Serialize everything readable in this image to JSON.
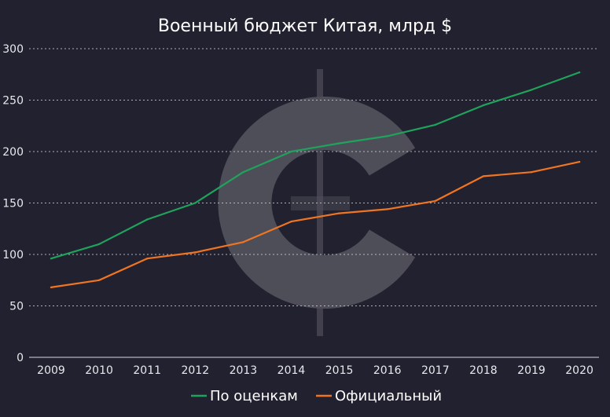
{
  "chart_data": {
    "type": "line",
    "title": "Военный бюджет Китая, млрд $",
    "xlabel": "",
    "ylabel": "",
    "x": [
      "2009",
      "2010",
      "2011",
      "2012",
      "2013",
      "2014",
      "2015",
      "2016",
      "2017",
      "2018",
      "2019",
      "2020"
    ],
    "ylim": [
      0,
      300
    ],
    "yticks": [
      "0",
      "50",
      "100",
      "150",
      "200",
      "250",
      "300"
    ],
    "grid": true,
    "legend_position": "bottom",
    "series": [
      {
        "name": "По оценкам",
        "color": "#1fa35c",
        "values": [
          96,
          110,
          134,
          150,
          180,
          200,
          208,
          215,
          226,
          245,
          260,
          277
        ]
      },
      {
        "name": "Официальный",
        "color": "#f07522",
        "values": [
          68,
          75,
          96,
          102,
          112,
          132,
          140,
          144,
          152,
          176,
          180,
          190
        ]
      }
    ]
  }
}
